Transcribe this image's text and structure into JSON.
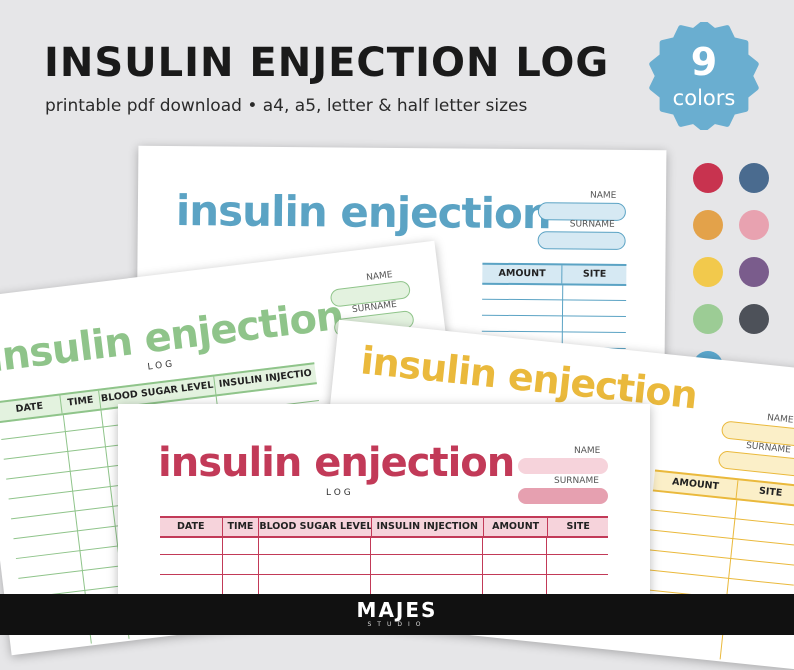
{
  "header": {
    "title": "INSULIN ENJECTION LOG",
    "subtitle": "printable pdf download • a4, a5, letter & half letter sizes"
  },
  "badge": {
    "number": "9",
    "word": "colors",
    "color": "#6aaed0"
  },
  "swatches": [
    "#c8334f",
    "#4a6b8f",
    "#e3a24a",
    "#e8a2b0",
    "#f2c94c",
    "#7a5c8c",
    "#9ccc95",
    "#4d5159",
    "#5aa6cc"
  ],
  "sheets": {
    "blue": {
      "heading": "insulin enjection",
      "name_label": "NAME",
      "surname_label": "SURNAME",
      "columns": [
        "AMOUNT",
        "SITE"
      ],
      "accent": "#5ba3c4",
      "fill": "#d6e9f3"
    },
    "green": {
      "heading": "insulin enjection",
      "sub": "LOG",
      "name_label": "NAME",
      "surname_label": "SURNAME",
      "columns": [
        "DATE",
        "TIME",
        "BLOOD SUGAR LEVEL",
        "INSULIN INJECTIO"
      ],
      "accent": "#8fc48a",
      "fill": "#e3f2df"
    },
    "yellow": {
      "heading": "insulin enjection",
      "name_label": "NAME",
      "surname_label": "SURNAME",
      "columns": [
        "AMOUNT",
        "SITE"
      ],
      "accent": "#eab93c",
      "fill": "#fbefc8"
    },
    "pink": {
      "heading": "insulin enjection",
      "sub": "LOG",
      "name_label": "NAME",
      "surname_label": "SURNAME",
      "columns": [
        "DATE",
        "TIME",
        "BLOOD SUGAR LEVEL",
        "INSULIN INJECTION",
        "AMOUNT",
        "SITE"
      ],
      "accent": "#c23a58",
      "fill": "#f6d3db",
      "fill2": "#e6a0b0"
    }
  },
  "footer": {
    "brand": "MAJES",
    "brand_sub": "STUDIO"
  }
}
